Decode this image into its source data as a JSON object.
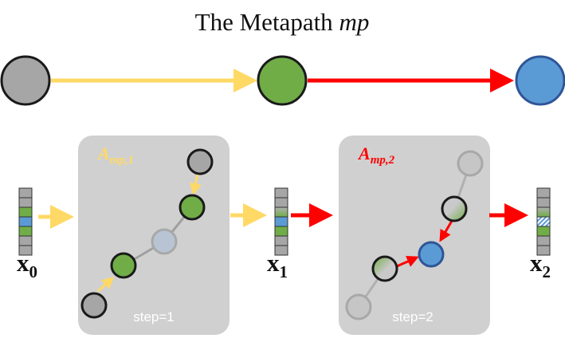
{
  "title": {
    "prefix": "The Metapath ",
    "italic": "mp"
  },
  "colors": {
    "type_a_node": "#a6a6a6",
    "type_b_node": "#70ad47",
    "type_c_node": "#5b9bd5",
    "relation_1_edge": "#ffd966",
    "relation_2_edge": "#ff0000",
    "panel_bg": "#d0d0d0",
    "node_outline": "#1a1a1a"
  },
  "metapath": {
    "nodes": [
      "type-a-node",
      "type-b-node",
      "type-c-node"
    ],
    "edges": [
      {
        "from": "type-a-node",
        "to": "type-b-node",
        "relation": "relation-1"
      },
      {
        "from": "type-b-node",
        "to": "type-c-node",
        "relation": "relation-2"
      }
    ]
  },
  "panels": [
    {
      "matrix_label_base": "A",
      "matrix_label_sub": "mp,1",
      "step_label": "step=1"
    },
    {
      "matrix_label_base": "A",
      "matrix_label_sub": "mp,2",
      "step_label": "step=2"
    }
  ],
  "vectors": [
    {
      "label_base": "x",
      "label_sub": "0",
      "cells": [
        "gray",
        "gray",
        "green",
        "blue",
        "green",
        "gray",
        "gray"
      ]
    },
    {
      "label_base": "x",
      "label_sub": "1",
      "cells": [
        "gray",
        "gray",
        "green-gradient",
        "blue",
        "green",
        "gray",
        "gray"
      ]
    },
    {
      "label_base": "x",
      "label_sub": "2",
      "cells": [
        "gray",
        "gray",
        "green-gradient",
        "hatched-blue",
        "green",
        "gray",
        "gray"
      ]
    }
  ]
}
